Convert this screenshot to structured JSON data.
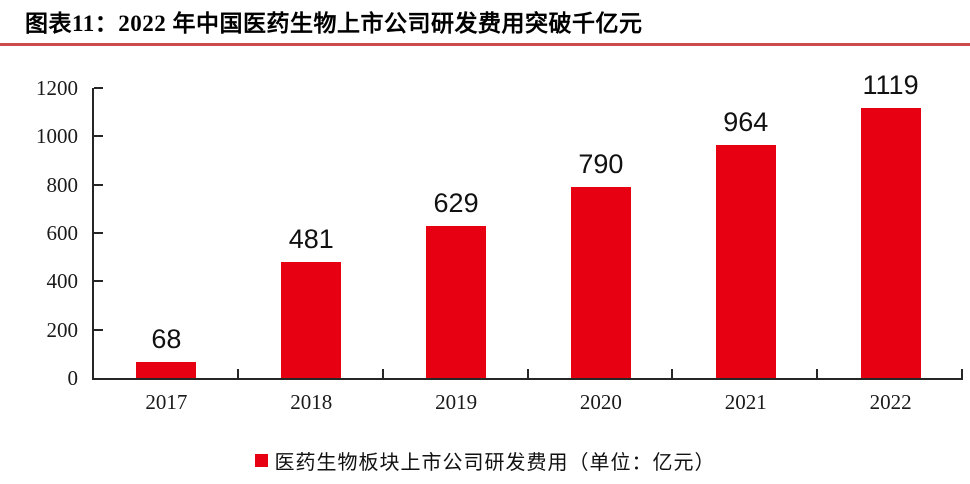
{
  "header": {
    "title": "图表11：2022 年中国医药生物上市公司研发费用突破千亿元"
  },
  "colors": {
    "bar": "#e60012",
    "title_rule": "#cd4a4a",
    "axis": "#262626",
    "legend_marker": "#e60012"
  },
  "legend": {
    "label": "医药生物板块上市公司研发费用（单位：亿元）"
  },
  "chart_data": {
    "type": "bar",
    "title": "图表11：2022 年中国医药生物上市公司研发费用突破千亿元",
    "categories": [
      "2017",
      "2018",
      "2019",
      "2020",
      "2021",
      "2022"
    ],
    "values": [
      68,
      481,
      629,
      790,
      964,
      1119
    ],
    "series_name": "医药生物板块上市公司研发费用（单位：亿元）",
    "xlabel": "",
    "ylabel": "",
    "unit": "亿元",
    "ylim": [
      0,
      1200
    ],
    "ytick_step": 200,
    "ytick_labels": [
      "0",
      "200",
      "400",
      "600",
      "800",
      "1000",
      "1200"
    ],
    "grid": false,
    "legend_position": "bottom",
    "data_labels_shown": true
  }
}
